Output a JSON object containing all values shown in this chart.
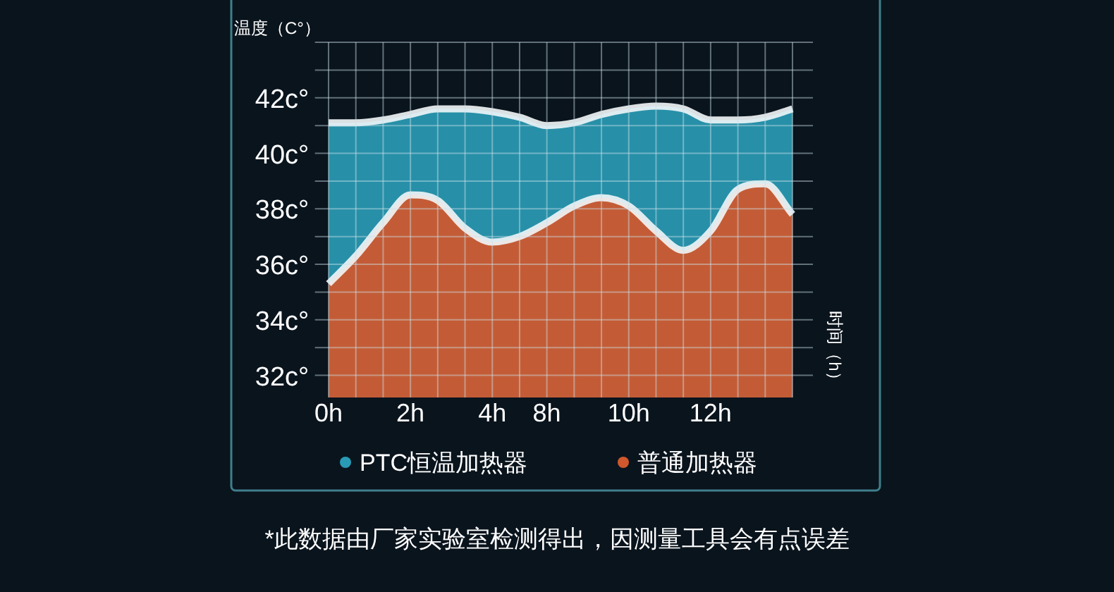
{
  "chart_data": {
    "type": "area",
    "title": "温度（C°）",
    "categories": [
      "0h",
      null,
      null,
      "2h",
      null,
      null,
      "4h",
      null,
      "8h",
      null,
      null,
      "10h",
      null,
      null,
      "12h",
      null,
      null,
      null
    ],
    "series": [
      {
        "name": "PTC恒温加热器",
        "color": "#2a9bb4",
        "values": [
          41.1,
          41.1,
          41.2,
          41.4,
          41.6,
          41.6,
          41.5,
          41.3,
          41.0,
          41.1,
          41.4,
          41.6,
          41.7,
          41.6,
          41.2,
          41.2,
          41.3,
          41.6
        ]
      },
      {
        "name": "普通加热器",
        "color": "#d0582c",
        "values": [
          35.3,
          36.3,
          37.5,
          38.5,
          38.3,
          37.3,
          36.8,
          37.0,
          37.5,
          38.1,
          38.4,
          38.1,
          37.2,
          36.5,
          37.2,
          38.7,
          38.9,
          37.8
        ]
      }
    ],
    "ylim": [
      31.2,
      44
    ],
    "yticks": [
      {
        "value": 32,
        "label": "32c°"
      },
      {
        "value": 33,
        "label": null
      },
      {
        "value": 34,
        "label": "34c°"
      },
      {
        "value": 35,
        "label": null
      },
      {
        "value": 36,
        "label": "36c°"
      },
      {
        "value": 37,
        "label": null
      },
      {
        "value": 38,
        "label": "38c°"
      },
      {
        "value": 39,
        "label": null
      },
      {
        "value": 40,
        "label": "40c°"
      },
      {
        "value": 41,
        "label": null
      },
      {
        "value": 42,
        "label": "42c°"
      },
      {
        "value": 43,
        "label": null
      },
      {
        "value": 44,
        "label": null
      }
    ],
    "grid": true,
    "legend": "bottom",
    "annotations": [
      "时间（h）",
      "*此数据由厂家实验室检测得出，因测量工具会有点误差"
    ]
  }
}
